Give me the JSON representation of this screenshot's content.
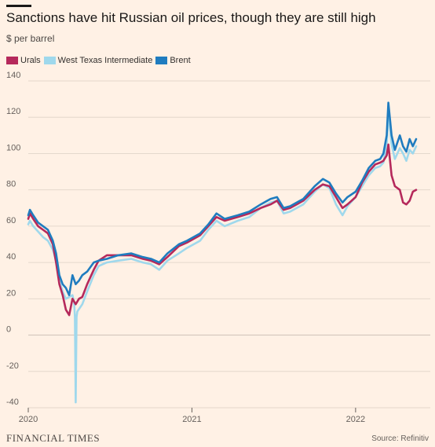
{
  "header": {
    "title": "Sanctions have hit Russian oil prices, though they are still high",
    "subtitle": "$ per barrel"
  },
  "footer": {
    "brand": "FINANCIAL TIMES",
    "source": "Source: Refinitiv"
  },
  "colors": {
    "background": "#fff1e5",
    "urals": "#b5295b",
    "wti": "#9fd8ec",
    "brent": "#1f7cbf",
    "grid": "#e4d8cc"
  },
  "chart_data": {
    "type": "line",
    "title": "Sanctions have hit Russian oil prices, though they are still high",
    "ylabel": "$ per barrel",
    "xlabel": "",
    "ylim": [
      -40,
      140
    ],
    "xlim": [
      2020.0,
      2022.37
    ],
    "yticks": [
      140,
      120,
      100,
      80,
      60,
      40,
      20,
      0,
      -20,
      -40
    ],
    "xticks": [
      {
        "value": 2020,
        "label": "2020"
      },
      {
        "value": 2021,
        "label": "2021"
      },
      {
        "value": 2022,
        "label": "2022"
      }
    ],
    "grid": true,
    "legend_position": "top-left",
    "series": [
      {
        "name": "Urals",
        "color": "#b5295b",
        "points": [
          [
            2020.0,
            64
          ],
          [
            2020.01,
            67
          ],
          [
            2020.03,
            64
          ],
          [
            2020.06,
            60
          ],
          [
            2020.09,
            58
          ],
          [
            2020.12,
            56
          ],
          [
            2020.15,
            50
          ],
          [
            2020.17,
            40
          ],
          [
            2020.19,
            28
          ],
          [
            2020.21,
            22
          ],
          [
            2020.23,
            14
          ],
          [
            2020.25,
            11
          ],
          [
            2020.27,
            20
          ],
          [
            2020.29,
            17
          ],
          [
            2020.31,
            20
          ],
          [
            2020.33,
            21
          ],
          [
            2020.36,
            28
          ],
          [
            2020.4,
            36
          ],
          [
            2020.43,
            41
          ],
          [
            2020.48,
            44
          ],
          [
            2020.55,
            44
          ],
          [
            2020.63,
            44
          ],
          [
            2020.7,
            42
          ],
          [
            2020.75,
            41
          ],
          [
            2020.8,
            39
          ],
          [
            2020.85,
            43
          ],
          [
            2020.92,
            49
          ],
          [
            2020.97,
            51
          ],
          [
            2021.05,
            55
          ],
          [
            2021.1,
            60
          ],
          [
            2021.15,
            65
          ],
          [
            2021.2,
            63
          ],
          [
            2021.28,
            65
          ],
          [
            2021.35,
            67
          ],
          [
            2021.42,
            70
          ],
          [
            2021.48,
            72
          ],
          [
            2021.52,
            74
          ],
          [
            2021.56,
            69
          ],
          [
            2021.6,
            70
          ],
          [
            2021.68,
            74
          ],
          [
            2021.75,
            80
          ],
          [
            2021.8,
            83
          ],
          [
            2021.84,
            82
          ],
          [
            2021.88,
            76
          ],
          [
            2021.92,
            70
          ],
          [
            2021.95,
            72
          ],
          [
            2022.0,
            76
          ],
          [
            2022.04,
            84
          ],
          [
            2022.08,
            90
          ],
          [
            2022.12,
            94
          ],
          [
            2022.15,
            95
          ],
          [
            2022.17,
            96
          ],
          [
            2022.19,
            99
          ],
          [
            2022.2,
            105
          ],
          [
            2022.22,
            88
          ],
          [
            2022.24,
            82
          ],
          [
            2022.27,
            80
          ],
          [
            2022.29,
            73
          ],
          [
            2022.31,
            72
          ],
          [
            2022.33,
            74
          ],
          [
            2022.35,
            79
          ],
          [
            2022.37,
            80
          ]
        ]
      },
      {
        "name": "West Texas Intermediate",
        "color": "#9fd8ec",
        "points": [
          [
            2020.0,
            61
          ],
          [
            2020.01,
            63
          ],
          [
            2020.03,
            60
          ],
          [
            2020.06,
            57
          ],
          [
            2020.09,
            54
          ],
          [
            2020.12,
            52
          ],
          [
            2020.15,
            47
          ],
          [
            2020.17,
            41
          ],
          [
            2020.19,
            30
          ],
          [
            2020.21,
            24
          ],
          [
            2020.23,
            20
          ],
          [
            2020.25,
            21
          ],
          [
            2020.27,
            22
          ],
          [
            2020.28,
            18
          ],
          [
            2020.285,
            10
          ],
          [
            2020.29,
            -37
          ],
          [
            2020.295,
            10
          ],
          [
            2020.3,
            13
          ],
          [
            2020.33,
            17
          ],
          [
            2020.36,
            24
          ],
          [
            2020.4,
            33
          ],
          [
            2020.43,
            38
          ],
          [
            2020.48,
            40
          ],
          [
            2020.55,
            41
          ],
          [
            2020.63,
            42
          ],
          [
            2020.7,
            40
          ],
          [
            2020.75,
            39
          ],
          [
            2020.8,
            36
          ],
          [
            2020.85,
            41
          ],
          [
            2020.92,
            45
          ],
          [
            2020.97,
            48
          ],
          [
            2021.05,
            52
          ],
          [
            2021.1,
            58
          ],
          [
            2021.15,
            63
          ],
          [
            2021.2,
            60
          ],
          [
            2021.28,
            63
          ],
          [
            2021.35,
            65
          ],
          [
            2021.42,
            70
          ],
          [
            2021.48,
            73
          ],
          [
            2021.52,
            74
          ],
          [
            2021.56,
            67
          ],
          [
            2021.6,
            68
          ],
          [
            2021.68,
            72
          ],
          [
            2021.75,
            79
          ],
          [
            2021.8,
            83
          ],
          [
            2021.84,
            81
          ],
          [
            2021.88,
            72
          ],
          [
            2021.92,
            66
          ],
          [
            2021.95,
            71
          ],
          [
            2022.0,
            76
          ],
          [
            2022.04,
            82
          ],
          [
            2022.08,
            88
          ],
          [
            2022.12,
            92
          ],
          [
            2022.15,
            93
          ],
          [
            2022.17,
            95
          ],
          [
            2022.19,
            105
          ],
          [
            2022.2,
            123
          ],
          [
            2022.22,
            105
          ],
          [
            2022.24,
            97
          ],
          [
            2022.27,
            103
          ],
          [
            2022.29,
            100
          ],
          [
            2022.31,
            96
          ],
          [
            2022.33,
            102
          ],
          [
            2022.35,
            100
          ],
          [
            2022.37,
            104
          ]
        ]
      },
      {
        "name": "Brent",
        "color": "#1f7cbf",
        "points": [
          [
            2020.0,
            66
          ],
          [
            2020.01,
            69
          ],
          [
            2020.03,
            66
          ],
          [
            2020.06,
            62
          ],
          [
            2020.09,
            60
          ],
          [
            2020.12,
            58
          ],
          [
            2020.15,
            52
          ],
          [
            2020.17,
            45
          ],
          [
            2020.19,
            33
          ],
          [
            2020.21,
            28
          ],
          [
            2020.23,
            26
          ],
          [
            2020.25,
            22
          ],
          [
            2020.27,
            33
          ],
          [
            2020.29,
            28
          ],
          [
            2020.31,
            30
          ],
          [
            2020.33,
            33
          ],
          [
            2020.36,
            35
          ],
          [
            2020.4,
            40
          ],
          [
            2020.43,
            41
          ],
          [
            2020.48,
            42
          ],
          [
            2020.55,
            44
          ],
          [
            2020.63,
            45
          ],
          [
            2020.7,
            43
          ],
          [
            2020.75,
            42
          ],
          [
            2020.8,
            40
          ],
          [
            2020.85,
            45
          ],
          [
            2020.92,
            50
          ],
          [
            2020.97,
            52
          ],
          [
            2021.05,
            56
          ],
          [
            2021.1,
            61
          ],
          [
            2021.15,
            67
          ],
          [
            2021.2,
            64
          ],
          [
            2021.28,
            66
          ],
          [
            2021.35,
            68
          ],
          [
            2021.42,
            72
          ],
          [
            2021.48,
            75
          ],
          [
            2021.52,
            76
          ],
          [
            2021.56,
            70
          ],
          [
            2021.6,
            71
          ],
          [
            2021.68,
            75
          ],
          [
            2021.75,
            82
          ],
          [
            2021.8,
            86
          ],
          [
            2021.84,
            84
          ],
          [
            2021.88,
            78
          ],
          [
            2021.92,
            73
          ],
          [
            2021.95,
            76
          ],
          [
            2022.0,
            79
          ],
          [
            2022.04,
            85
          ],
          [
            2022.08,
            92
          ],
          [
            2022.12,
            96
          ],
          [
            2022.15,
            97
          ],
          [
            2022.17,
            100
          ],
          [
            2022.19,
            110
          ],
          [
            2022.2,
            128
          ],
          [
            2022.22,
            110
          ],
          [
            2022.24,
            102
          ],
          [
            2022.27,
            110
          ],
          [
            2022.29,
            104
          ],
          [
            2022.31,
            101
          ],
          [
            2022.33,
            108
          ],
          [
            2022.35,
            104
          ],
          [
            2022.37,
            108
          ]
        ]
      }
    ]
  }
}
